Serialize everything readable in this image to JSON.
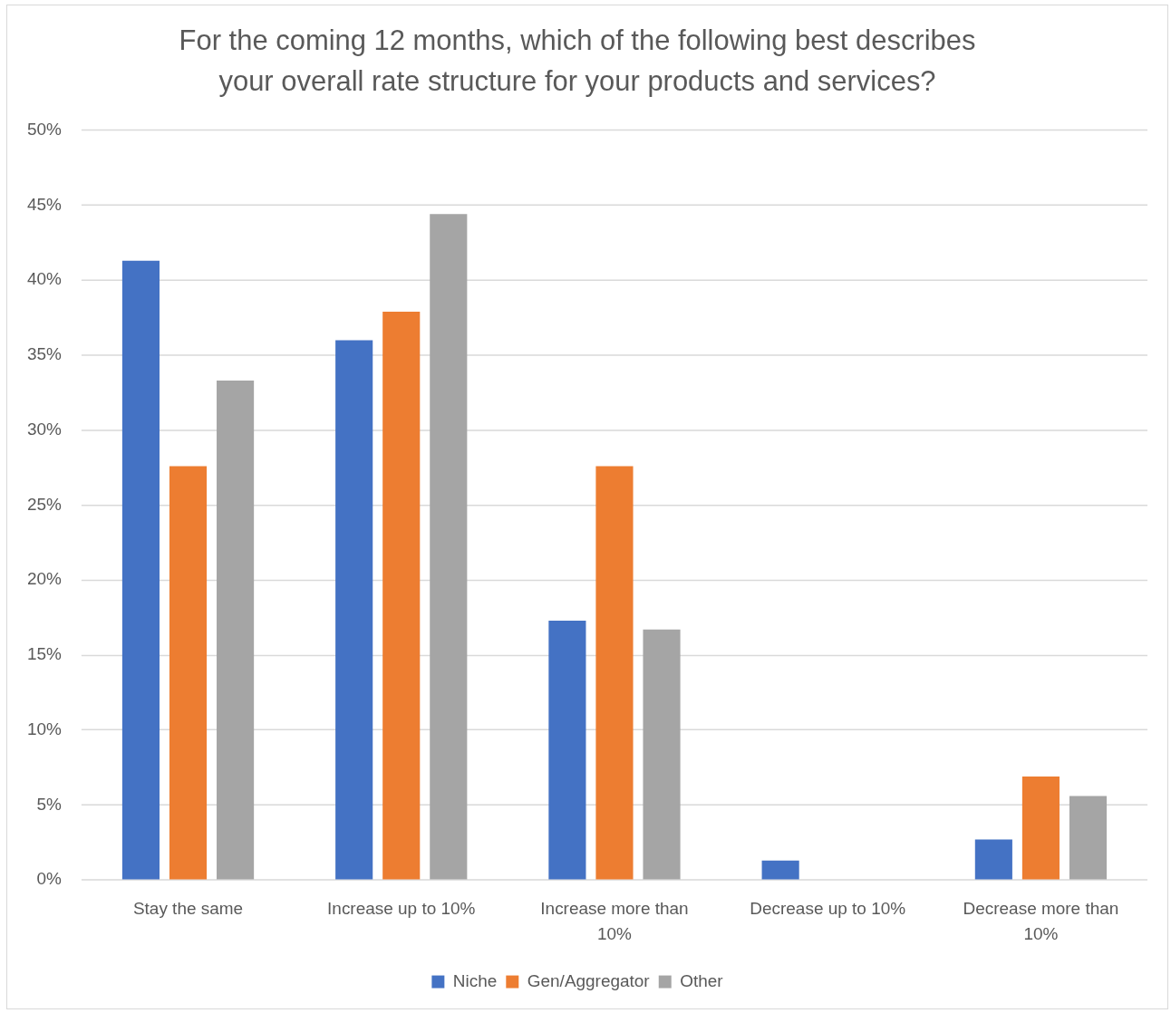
{
  "chart_data": {
    "type": "bar",
    "title": "For the coming 12 months, which of the following best describes your overall rate structure for your products and services?",
    "categories": [
      "Stay the same",
      "Increase up to 10%",
      "Increase more than 10%",
      "Decrease up to 10%",
      "Decrease more than 10%"
    ],
    "series": [
      {
        "name": "Niche",
        "color": "#4472c4",
        "values": [
          41.3,
          36.0,
          17.3,
          1.3,
          2.7
        ]
      },
      {
        "name": "Gen/Aggregator",
        "color": "#ed7d31",
        "values": [
          27.6,
          37.9,
          27.6,
          0,
          6.9
        ]
      },
      {
        "name": "Other",
        "color": "#a5a5a5",
        "values": [
          33.3,
          44.4,
          16.7,
          0,
          5.6
        ]
      }
    ],
    "ylim": [
      0,
      50
    ],
    "yticks": [
      {
        "value": 0,
        "label": "0%"
      },
      {
        "value": 5,
        "label": "5%"
      },
      {
        "value": 10,
        "label": "10%"
      },
      {
        "value": 15,
        "label": "15%"
      },
      {
        "value": 20,
        "label": "20%"
      },
      {
        "value": 25,
        "label": "25%"
      },
      {
        "value": 30,
        "label": "30%"
      },
      {
        "value": 35,
        "label": "35%"
      },
      {
        "value": 40,
        "label": "40%"
      },
      {
        "value": 45,
        "label": "45%"
      },
      {
        "value": 50,
        "label": "50%"
      }
    ],
    "grid": "y",
    "legend": "bottom"
  }
}
